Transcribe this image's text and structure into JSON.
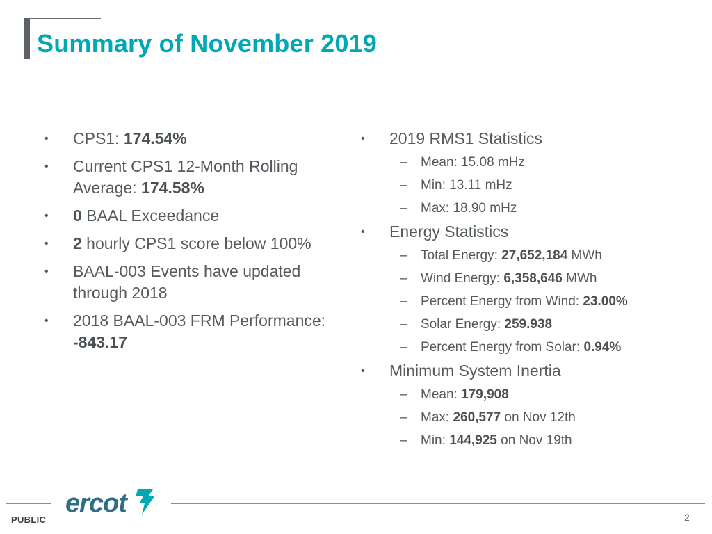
{
  "title": "Summary of November 2019",
  "left": {
    "items": [
      {
        "pre": "CPS1: ",
        "bold": "174.54%",
        "post": ""
      },
      {
        "pre": "Current CPS1 12-Month Rolling Average: ",
        "bold": "174.58%",
        "post": ""
      },
      {
        "pre": "",
        "bold": "0",
        "post": " BAAL Exceedance"
      },
      {
        "pre": "",
        "bold": "2",
        "post": " hourly CPS1 score below 100%"
      },
      {
        "pre": "BAAL-003 Events have updated through 2018",
        "bold": "",
        "post": ""
      },
      {
        "pre": "2018 BAAL-003 FRM Performance: ",
        "bold": "-843.17",
        "post": ""
      }
    ]
  },
  "right": {
    "sections": [
      {
        "heading": "2019 RMS1 Statistics",
        "items": [
          {
            "pre": "Mean: 15.08 mHz",
            "bold": "",
            "post": ""
          },
          {
            "pre": "Min: 13.11 mHz",
            "bold": "",
            "post": ""
          },
          {
            "pre": "Max: 18.90 mHz",
            "bold": "",
            "post": ""
          }
        ]
      },
      {
        "heading": "Energy Statistics",
        "items": [
          {
            "pre": "Total Energy: ",
            "bold": "27,652,184",
            "post": " MWh"
          },
          {
            "pre": "Wind Energy: ",
            "bold": "6,358,646",
            "post": " MWh"
          },
          {
            "pre": "Percent Energy from Wind: ",
            "bold": "23.00%",
            "post": ""
          },
          {
            "pre": "Solar Energy: ",
            "bold": "259.938",
            "post": ""
          },
          {
            "pre": "Percent Energy from Solar: ",
            "bold": "0.94%",
            "post": ""
          }
        ]
      },
      {
        "heading": "Minimum System Inertia",
        "items": [
          {
            "pre": "Mean: ",
            "bold": "179,908",
            "post": ""
          },
          {
            "pre": "Max: ",
            "bold": "260,577",
            "post": " on Nov 12th"
          },
          {
            "pre": "Min: ",
            "bold": "144,925",
            "post": " on Nov 19th"
          }
        ]
      }
    ]
  },
  "bullet_char": "•",
  "dash_char": "–",
  "footer": {
    "logo_text": "ercot",
    "label": "PUBLIC",
    "page_number": "2"
  },
  "colors": {
    "title": "#00a7b5",
    "body_text": "#555a5e",
    "logo": "#2f6f86",
    "logo_accent": "#00a7b5"
  }
}
